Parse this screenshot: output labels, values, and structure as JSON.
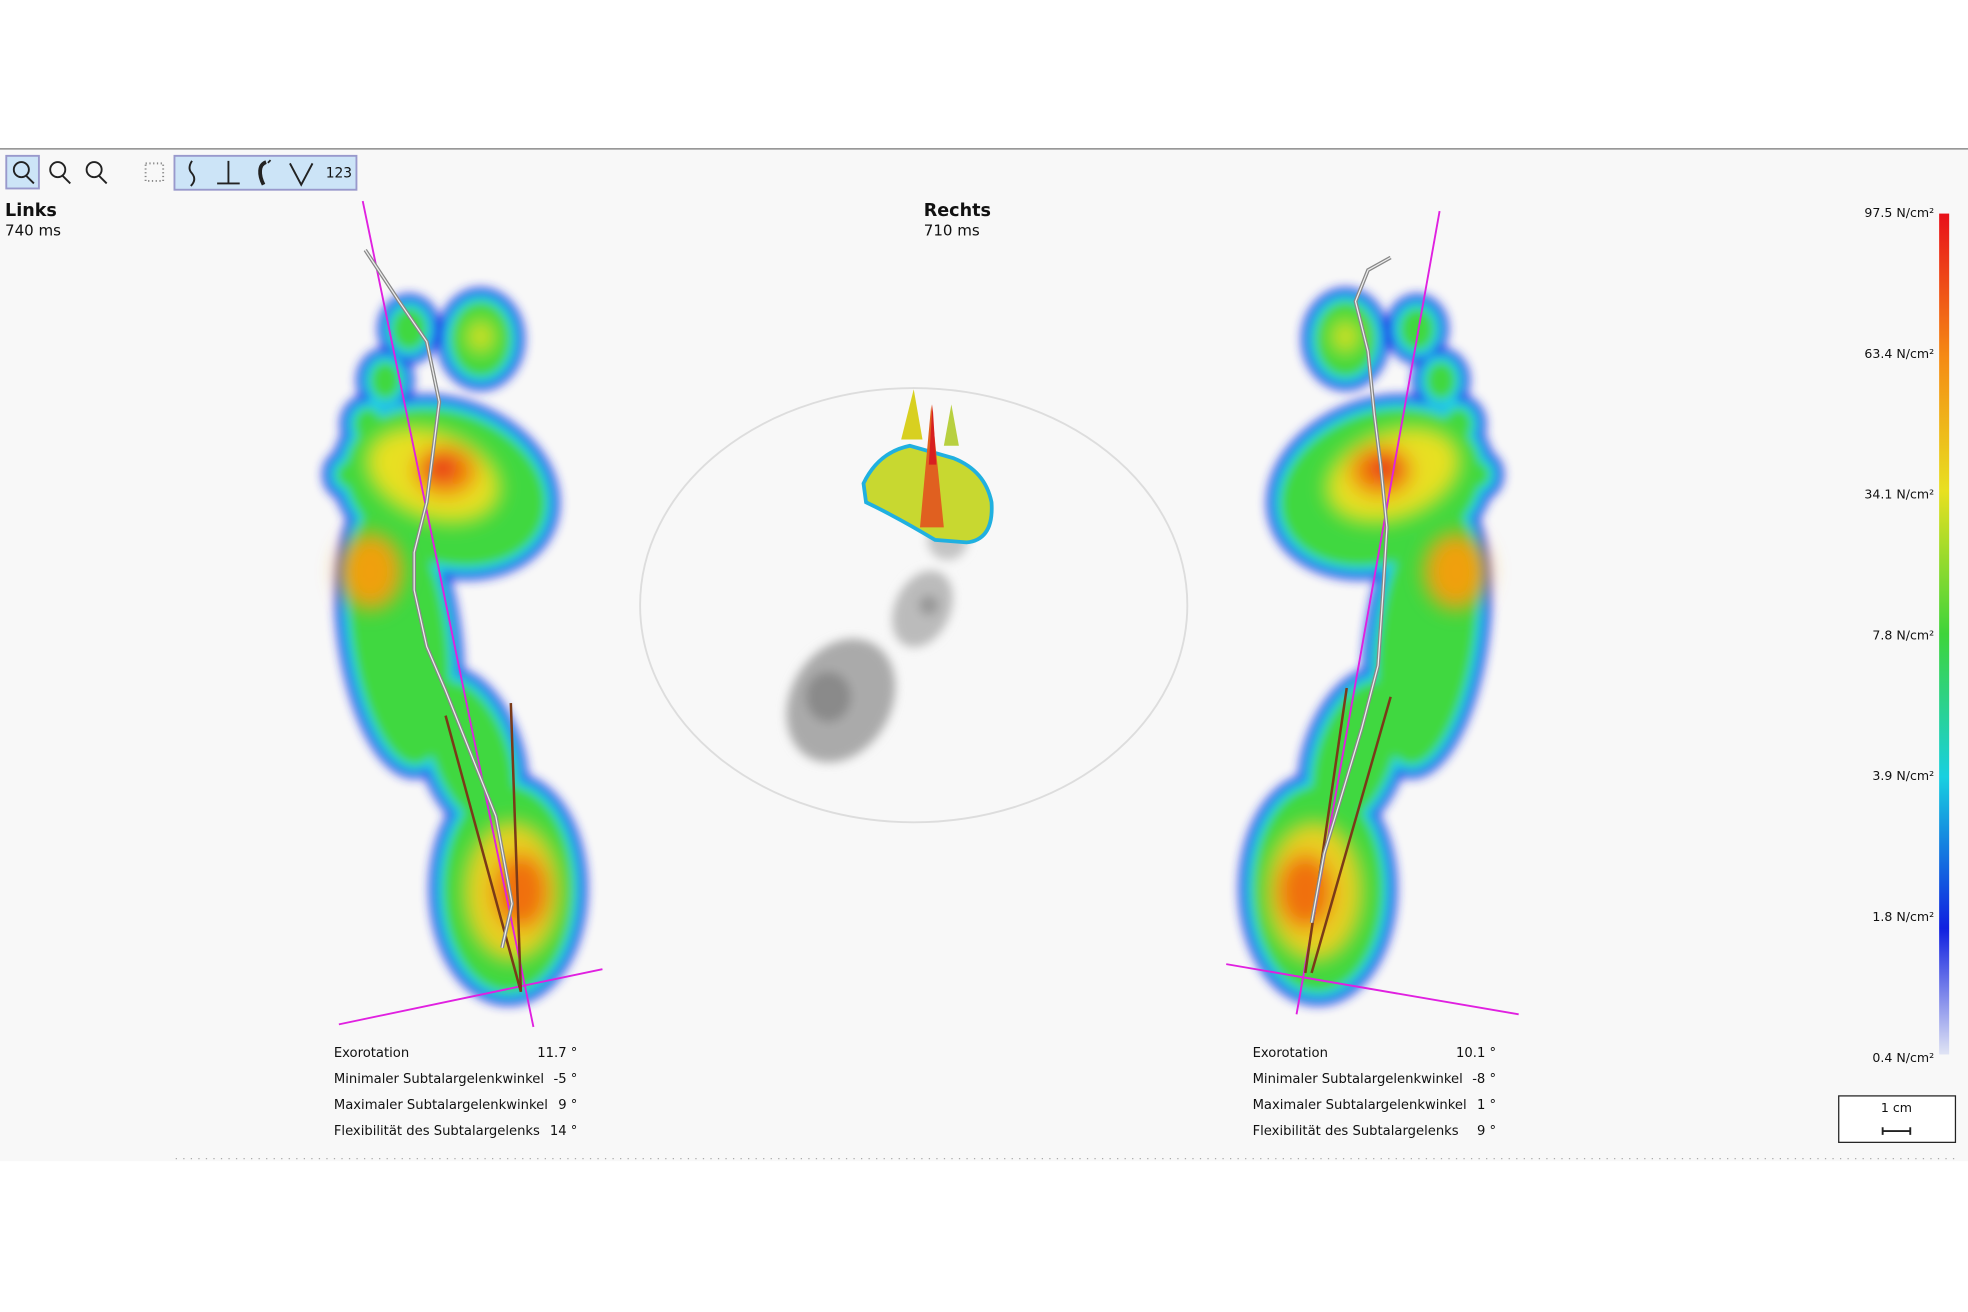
{
  "toolbar": {
    "mode_button": "123"
  },
  "left": {
    "title": "Links",
    "duration": "740 ms",
    "metrics": [
      {
        "label": "Exorotation",
        "value": "11.7 °"
      },
      {
        "label": "Minimaler Subtalargelenkwinkel",
        "value": "-5 °"
      },
      {
        "label": "Maximaler Subtalargelenkwinkel",
        "value": "9 °"
      },
      {
        "label": "Flexibilität des Subtalargelenks",
        "value": "14 °"
      }
    ]
  },
  "right": {
    "title": "Rechts",
    "duration": "710 ms",
    "metrics": [
      {
        "label": "Exorotation",
        "value": "10.1 °"
      },
      {
        "label": "Minimaler Subtalargelenkwinkel",
        "value": "-8 °"
      },
      {
        "label": "Maximaler Subtalargelenkwinkel",
        "value": "1 °"
      },
      {
        "label": "Flexibilität des Subtalargelenks",
        "value": "9 °"
      }
    ]
  },
  "legend": {
    "labels": [
      "97.5 N/cm²",
      "63.4 N/cm²",
      "34.1 N/cm²",
      "7.8 N/cm²",
      "3.9 N/cm²",
      "1.8 N/cm²",
      "0.4 N/cm²"
    ]
  },
  "scale": {
    "label": "1 cm"
  }
}
